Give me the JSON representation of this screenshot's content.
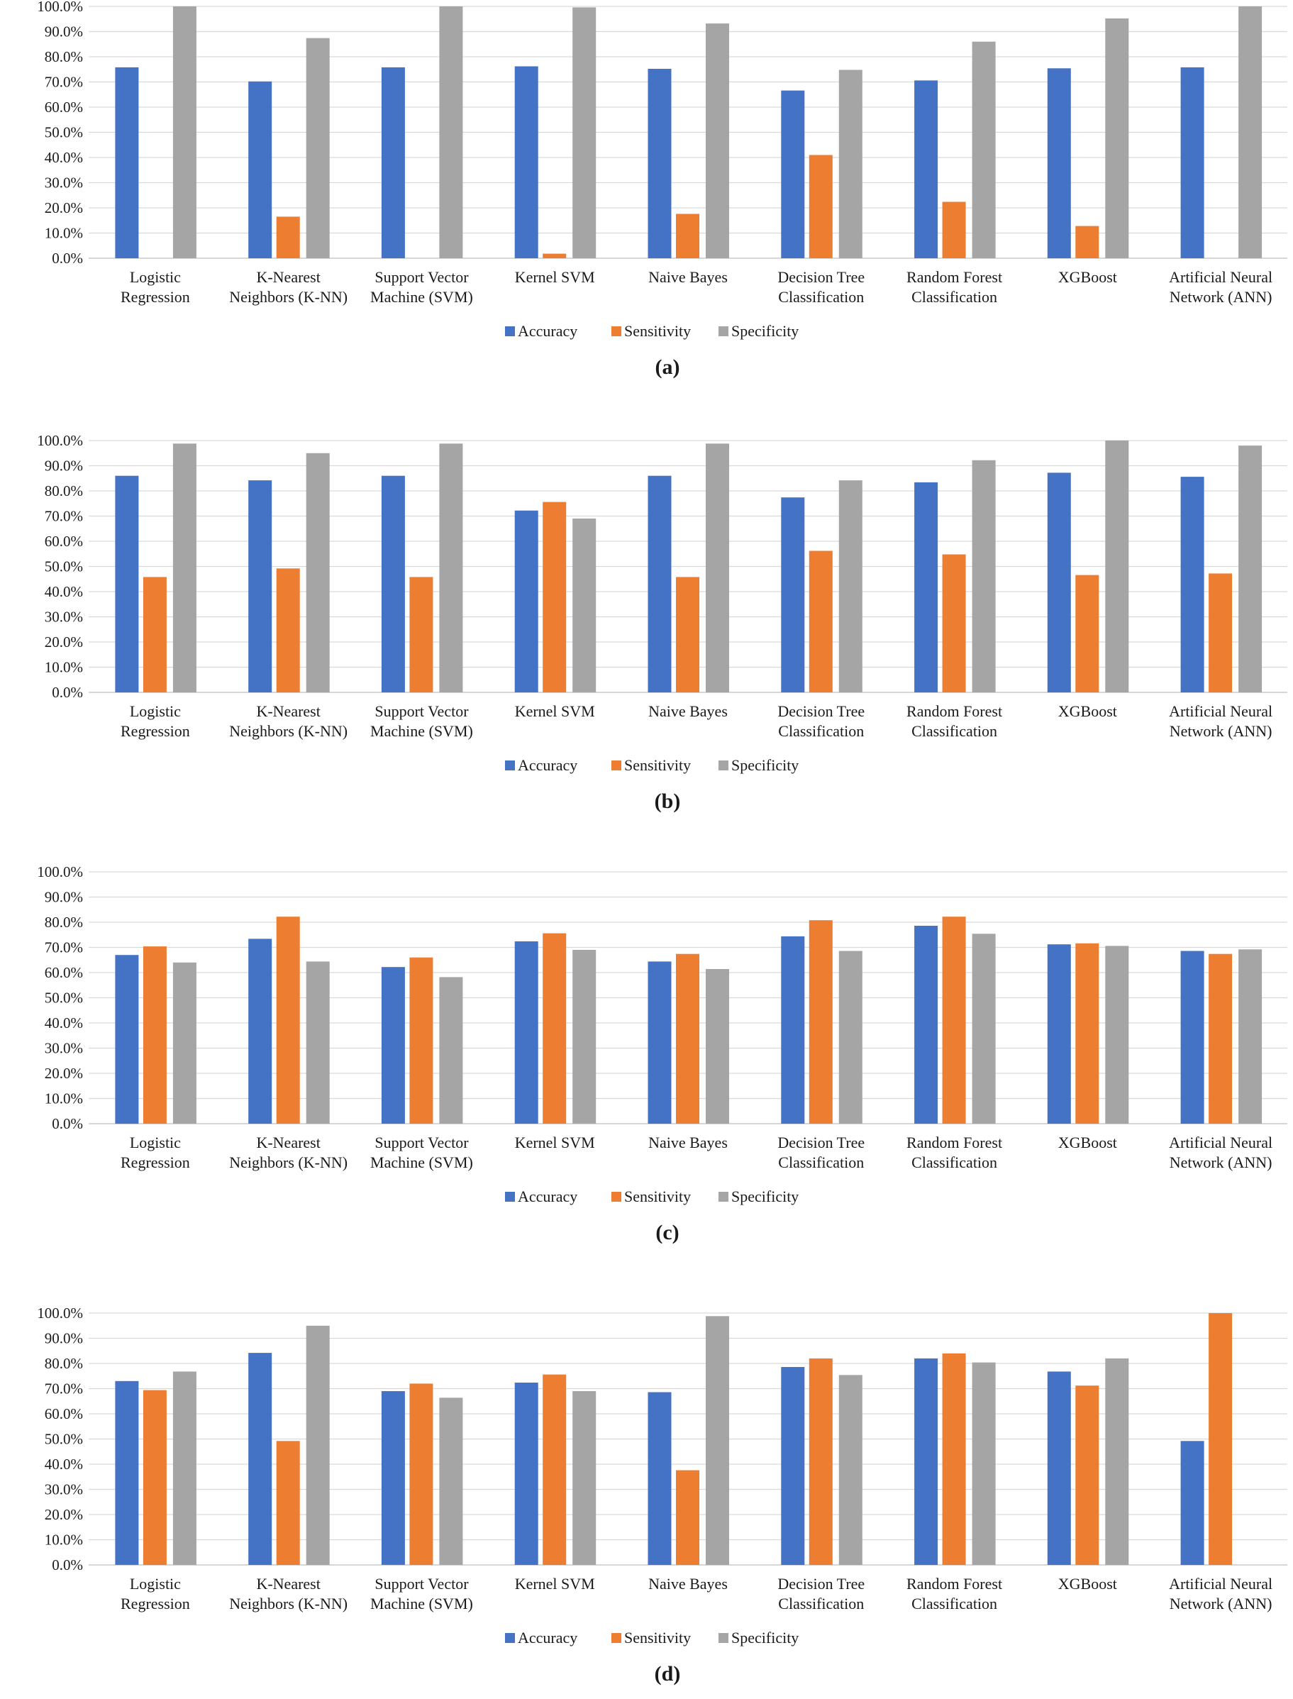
{
  "figure": {
    "series_colors": {
      "Accuracy": "#4472C4",
      "Sensitivity": "#ED7D31",
      "Specificity": "#A5A5A5"
    },
    "legend": [
      "Accuracy",
      "Sensitivity",
      "Specificity"
    ]
  },
  "chart_data": [
    {
      "type": "bar",
      "panel_label": "(a)",
      "ylim": [
        0,
        100
      ],
      "yticks": [
        "0.0%",
        "10.0%",
        "20.0%",
        "30.0%",
        "40.0%",
        "50.0%",
        "60.0%",
        "70.0%",
        "80.0%",
        "90.0%",
        "100.0%"
      ],
      "categories": [
        [
          "Logistic",
          "Regression"
        ],
        [
          "K-Nearest",
          "Neighbors (K-NN)"
        ],
        [
          "Support Vector",
          "Machine (SVM)"
        ],
        [
          "Kernel SVM"
        ],
        [
          "Naive Bayes"
        ],
        [
          "Decision Tree",
          "Classification"
        ],
        [
          "Random Forest",
          "Classification"
        ],
        [
          "XGBoost"
        ],
        [
          "Artificial Neural",
          "Network (ANN)"
        ]
      ],
      "legend_position": "bottom",
      "series": [
        {
          "name": "Accuracy",
          "values": [
            75.8,
            70.2,
            75.8,
            76.2,
            75.2,
            66.6,
            70.6,
            75.4,
            75.8
          ]
        },
        {
          "name": "Sensitivity",
          "values": [
            0,
            16.5,
            0,
            1.8,
            17.6,
            41.0,
            22.4,
            12.8,
            0
          ]
        },
        {
          "name": "Specificity",
          "values": [
            100,
            87.4,
            100,
            99.6,
            93.2,
            74.8,
            86.0,
            95.2,
            100
          ]
        }
      ]
    },
    {
      "type": "bar",
      "panel_label": "(b)",
      "ylim": [
        0,
        100
      ],
      "yticks": [
        "0.0%",
        "10.0%",
        "20.0%",
        "30.0%",
        "40.0%",
        "50.0%",
        "60.0%",
        "70.0%",
        "80.0%",
        "90.0%",
        "100.0%"
      ],
      "categories": [
        [
          "Logistic",
          "Regression"
        ],
        [
          "K-Nearest",
          "Neighbors (K-NN)"
        ],
        [
          "Support Vector",
          "Machine (SVM)"
        ],
        [
          "Kernel SVM"
        ],
        [
          "Naive Bayes"
        ],
        [
          "Decision Tree",
          "Classification"
        ],
        [
          "Random Forest",
          "Classification"
        ],
        [
          "XGBoost"
        ],
        [
          "Artificial Neural",
          "Network (ANN)"
        ]
      ],
      "legend_position": "bottom",
      "series": [
        {
          "name": "Accuracy",
          "values": [
            86.0,
            84.2,
            86.0,
            72.2,
            86.0,
            77.4,
            83.4,
            87.2,
            85.6
          ]
        },
        {
          "name": "Sensitivity",
          "values": [
            45.8,
            49.2,
            45.8,
            75.6,
            45.8,
            56.2,
            54.8,
            46.6,
            47.2
          ]
        },
        {
          "name": "Specificity",
          "values": [
            98.8,
            95.0,
            98.8,
            69.0,
            98.8,
            84.2,
            92.2,
            100,
            98.0
          ]
        }
      ]
    },
    {
      "type": "bar",
      "panel_label": "(c)",
      "ylim": [
        0,
        100
      ],
      "yticks": [
        "0.0%",
        "10.0%",
        "20.0%",
        "30.0%",
        "40.0%",
        "50.0%",
        "60.0%",
        "70.0%",
        "80.0%",
        "90.0%",
        "100.0%"
      ],
      "categories": [
        [
          "Logistic",
          "Regression"
        ],
        [
          "K-Nearest",
          "Neighbors (K-NN)"
        ],
        [
          "Support Vector",
          "Machine (SVM)"
        ],
        [
          "Kernel SVM"
        ],
        [
          "Naive Bayes"
        ],
        [
          "Decision Tree",
          "Classification"
        ],
        [
          "Random Forest",
          "Classification"
        ],
        [
          "XGBoost"
        ],
        [
          "Artificial Neural",
          "Network (ANN)"
        ]
      ],
      "legend_position": "bottom",
      "series": [
        {
          "name": "Accuracy",
          "values": [
            67.0,
            73.4,
            62.2,
            72.4,
            64.4,
            74.4,
            78.6,
            71.2,
            68.6
          ]
        },
        {
          "name": "Sensitivity",
          "values": [
            70.4,
            82.2,
            66.0,
            75.6,
            67.4,
            80.8,
            82.2,
            71.6,
            67.4
          ]
        },
        {
          "name": "Specificity",
          "values": [
            64.0,
            64.4,
            58.2,
            69.0,
            61.4,
            68.6,
            75.4,
            70.6,
            69.2
          ]
        }
      ]
    },
    {
      "type": "bar",
      "panel_label": "(d)",
      "ylim": [
        0,
        100
      ],
      "yticks": [
        "0.0%",
        "10.0%",
        "20.0%",
        "30.0%",
        "40.0%",
        "50.0%",
        "60.0%",
        "70.0%",
        "80.0%",
        "90.0%",
        "100.0%"
      ],
      "categories": [
        [
          "Logistic",
          "Regression"
        ],
        [
          "K-Nearest",
          "Neighbors (K-NN)"
        ],
        [
          "Support Vector",
          "Machine (SVM)"
        ],
        [
          "Kernel SVM"
        ],
        [
          "Naive Bayes"
        ],
        [
          "Decision Tree",
          "Classification"
        ],
        [
          "Random Forest",
          "Classification"
        ],
        [
          "XGBoost"
        ],
        [
          "Artificial Neural",
          "Network (ANN)"
        ]
      ],
      "legend_position": "bottom",
      "series": [
        {
          "name": "Accuracy",
          "values": [
            73.0,
            84.2,
            69.0,
            72.4,
            68.6,
            78.6,
            82.0,
            76.8,
            49.2
          ]
        },
        {
          "name": "Sensitivity",
          "values": [
            69.4,
            49.2,
            72.0,
            75.6,
            37.6,
            82.0,
            84.0,
            71.2,
            100
          ]
        },
        {
          "name": "Specificity",
          "values": [
            76.8,
            95.0,
            66.4,
            69.0,
            98.8,
            75.4,
            80.4,
            82.0,
            0
          ]
        }
      ]
    }
  ]
}
